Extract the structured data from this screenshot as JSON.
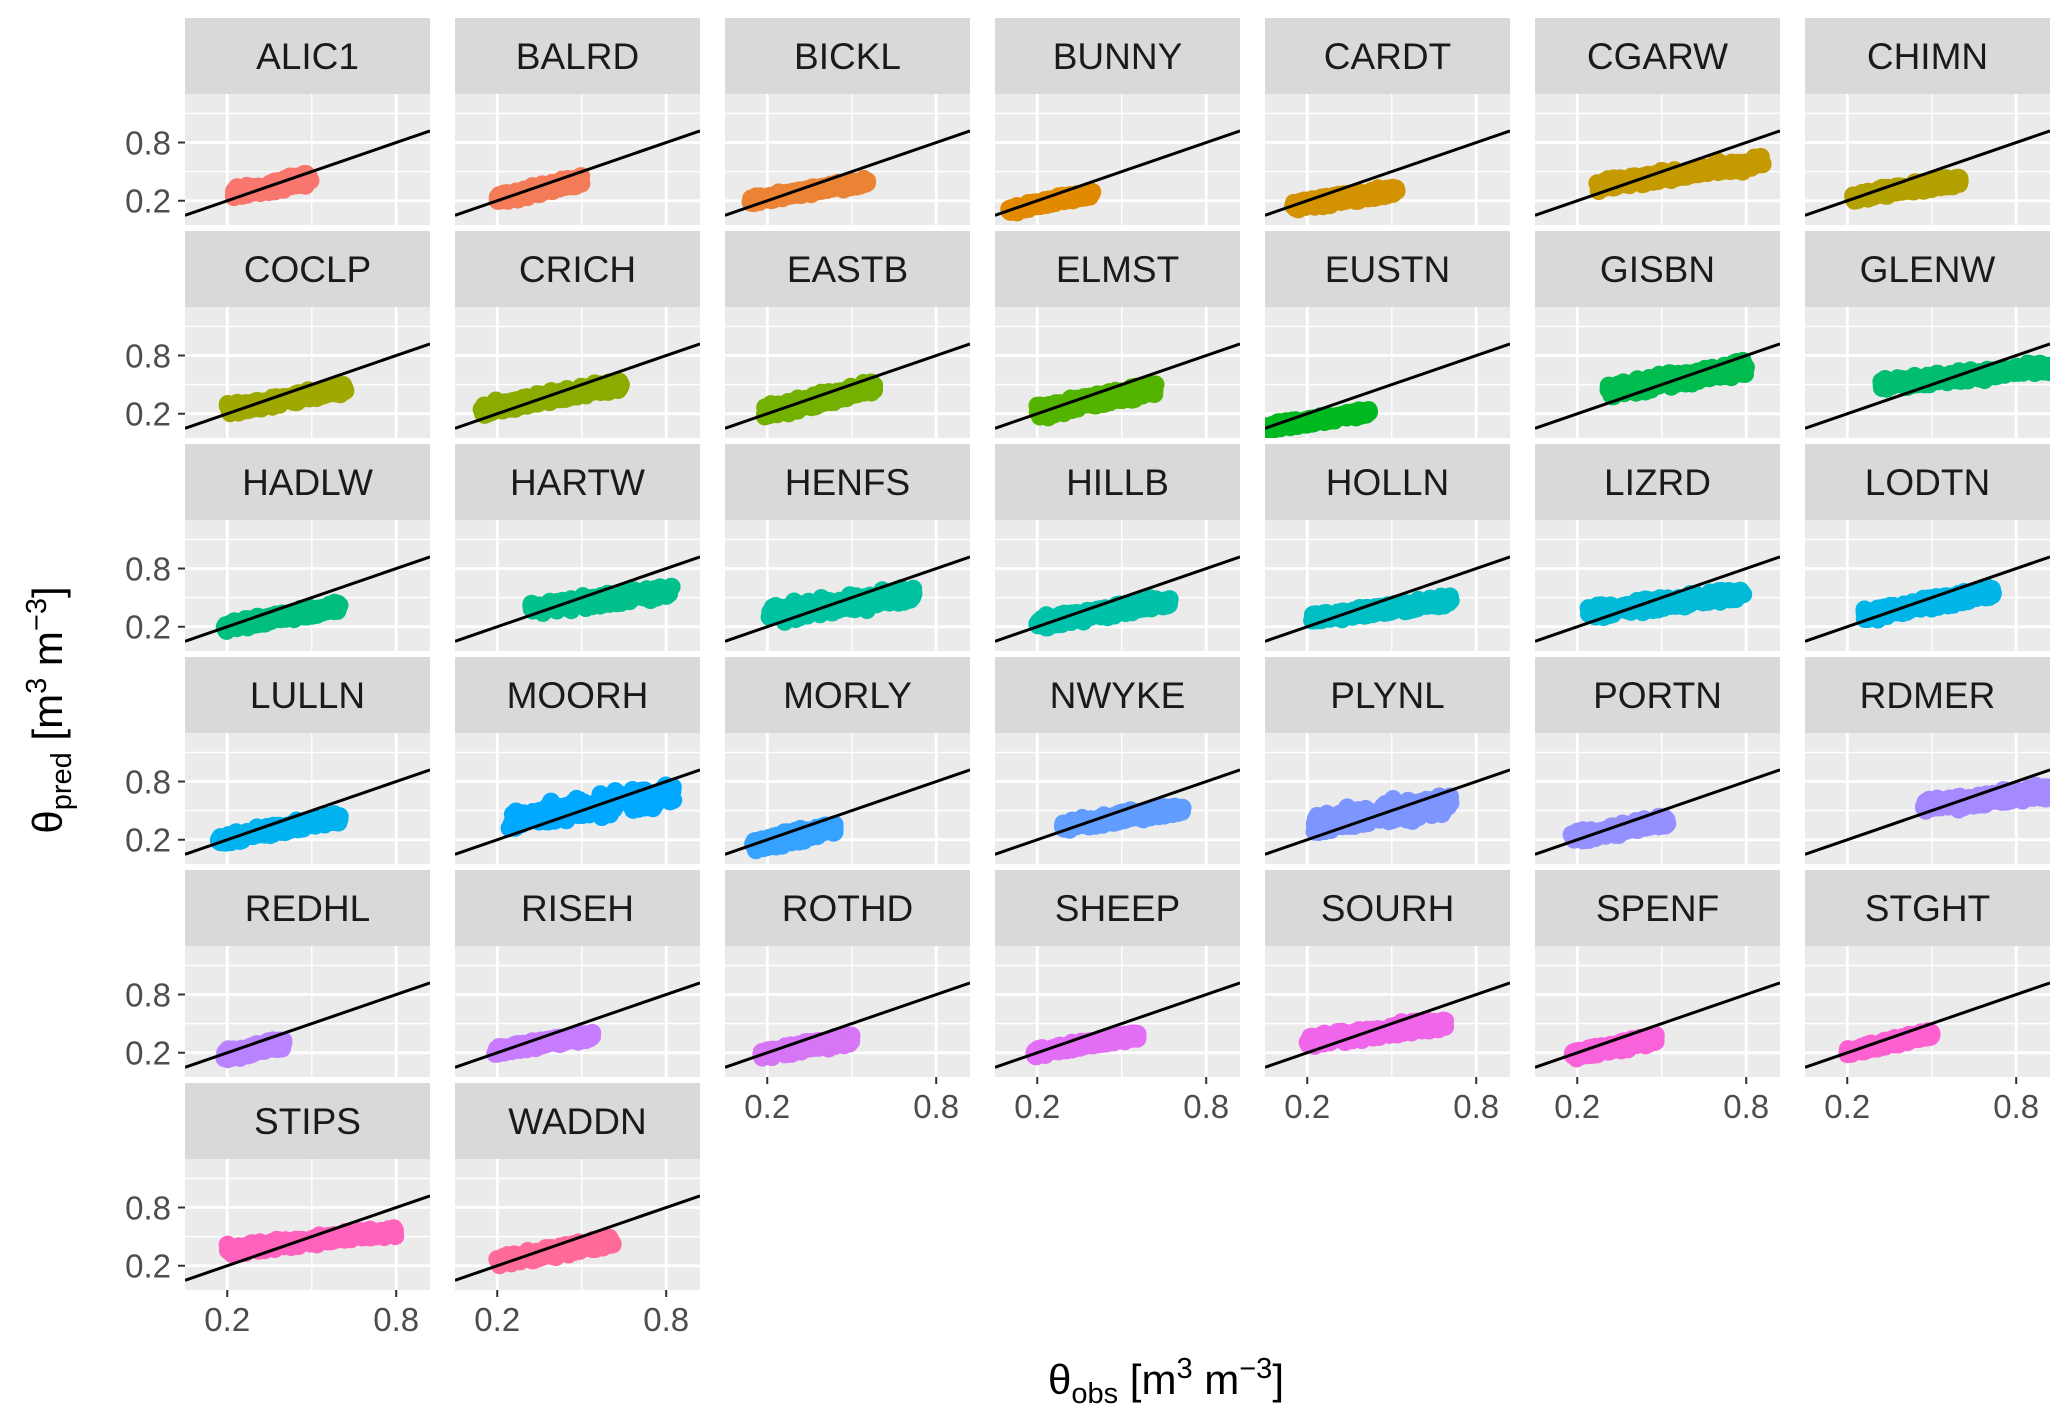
{
  "chart_data": {
    "type": "scatter",
    "facet_layout": {
      "ncol": 7,
      "nrow": 6,
      "free": false
    },
    "xlabel": {
      "symbol": "θ",
      "subscript": "obs",
      "unit_prefix": " [m",
      "sup1": "3",
      "unit_mid": " m",
      "sup2": "−3",
      "unit_suffix": "]"
    },
    "ylabel": {
      "symbol": "θ",
      "subscript": "pred",
      "unit_prefix": " [m",
      "sup1": "3",
      "unit_mid": " m",
      "sup2": "−3",
      "unit_suffix": "]"
    },
    "xlim": [
      0.05,
      0.92
    ],
    "ylim": [
      -0.05,
      1.3
    ],
    "x_ticks": [
      "0.2",
      "0.8"
    ],
    "y_ticks": [
      "0.8",
      "0.2"
    ],
    "x_tick_values": [
      0.2,
      0.8
    ],
    "y_tick_values": [
      0.8,
      0.2
    ],
    "reference_line": {
      "type": "1:1",
      "color": "#000000"
    },
    "grid": true,
    "legend": "none",
    "panels": [
      {
        "site": "ALIC1",
        "color": "#F8766D",
        "x_range": [
          0.22,
          0.5
        ],
        "y_range": [
          0.2,
          0.5
        ],
        "y_at_x_min": 0.27,
        "y_at_x_max": 0.43
      },
      {
        "site": "BALRD",
        "color": "#F47B58",
        "x_range": [
          0.2,
          0.5
        ],
        "y_range": [
          0.17,
          0.48
        ],
        "y_at_x_min": 0.22,
        "y_at_x_max": 0.41
      },
      {
        "site": "BICKL",
        "color": "#EB8335",
        "x_range": [
          0.14,
          0.56
        ],
        "y_range": [
          0.16,
          0.45
        ],
        "y_at_x_min": 0.2,
        "y_at_x_max": 0.4
      },
      {
        "site": "BUNNY",
        "color": "#E18A00",
        "x_range": [
          0.1,
          0.4
        ],
        "y_range": [
          0.06,
          0.33
        ],
        "y_at_x_min": 0.1,
        "y_at_x_max": 0.28
      },
      {
        "site": "CARDT",
        "color": "#D39200",
        "x_range": [
          0.15,
          0.52
        ],
        "y_range": [
          0.09,
          0.38
        ],
        "y_at_x_min": 0.15,
        "y_at_x_max": 0.31
      },
      {
        "site": "CGARW",
        "color": "#C49A00",
        "x_range": [
          0.27,
          0.86
        ],
        "y_range": [
          0.28,
          0.68
        ],
        "y_at_x_min": 0.36,
        "y_at_x_max": 0.6
      },
      {
        "site": "CHIMN",
        "color": "#B2A100",
        "x_range": [
          0.22,
          0.6
        ],
        "y_range": [
          0.18,
          0.48
        ],
        "y_at_x_min": 0.24,
        "y_at_x_max": 0.41
      },
      {
        "site": "COCLP",
        "color": "#9FA800",
        "x_range": [
          0.2,
          0.62
        ],
        "y_range": [
          0.18,
          0.55
        ],
        "y_at_x_min": 0.24,
        "y_at_x_max": 0.46
      },
      {
        "site": "CRICH",
        "color": "#8AAB00",
        "x_range": [
          0.14,
          0.64
        ],
        "y_range": [
          0.17,
          0.58
        ],
        "y_at_x_min": 0.24,
        "y_at_x_max": 0.5
      },
      {
        "site": "EASTB",
        "color": "#73B000",
        "x_range": [
          0.19,
          0.58
        ],
        "y_range": [
          0.14,
          0.56
        ],
        "y_at_x_min": 0.22,
        "y_at_x_max": 0.47
      },
      {
        "site": "ELMST",
        "color": "#53B400",
        "x_range": [
          0.2,
          0.62
        ],
        "y_range": [
          0.14,
          0.55
        ],
        "y_at_x_min": 0.22,
        "y_at_x_max": 0.46
      },
      {
        "site": "EUSTN",
        "color": "#00B81F",
        "x_range": [
          0.05,
          0.42
        ],
        "y_range": [
          0.03,
          0.3
        ],
        "y_at_x_min": 0.05,
        "y_at_x_max": 0.22
      },
      {
        "site": "GISBN",
        "color": "#00BB4E",
        "x_range": [
          0.31,
          0.8
        ],
        "y_range": [
          0.38,
          0.82
        ],
        "y_at_x_min": 0.43,
        "y_at_x_max": 0.68
      },
      {
        "site": "GLENW",
        "color": "#00BD70",
        "x_range": [
          0.32,
          0.92
        ],
        "y_range": [
          0.42,
          0.75
        ],
        "y_at_x_min": 0.5,
        "y_at_x_max": 0.68
      },
      {
        "site": "HADLW",
        "color": "#00BF7D",
        "x_range": [
          0.19,
          0.6
        ],
        "y_range": [
          0.14,
          0.47
        ],
        "y_at_x_min": 0.2,
        "y_at_x_max": 0.41
      },
      {
        "site": "HARTW",
        "color": "#00C08B",
        "x_range": [
          0.32,
          0.82
        ],
        "y_range": [
          0.3,
          0.64
        ],
        "y_at_x_min": 0.38,
        "y_at_x_max": 0.57
      },
      {
        "site": "HENFS",
        "color": "#00C1A0",
        "x_range": [
          0.2,
          0.72
        ],
        "y_range": [
          0.24,
          0.68
        ],
        "y_at_x_min": 0.32,
        "y_at_x_max": 0.54
      },
      {
        "site": "HILLB",
        "color": "#00C1AA",
        "x_range": [
          0.2,
          0.67
        ],
        "y_range": [
          0.18,
          0.55
        ],
        "y_at_x_min": 0.24,
        "y_at_x_max": 0.46
      },
      {
        "site": "HOLLN",
        "color": "#00BFC4",
        "x_range": [
          0.21,
          0.71
        ],
        "y_range": [
          0.22,
          0.54
        ],
        "y_at_x_min": 0.28,
        "y_at_x_max": 0.47
      },
      {
        "site": "LIZRD",
        "color": "#00BAD8",
        "x_range": [
          0.24,
          0.79
        ],
        "y_range": [
          0.26,
          0.65
        ],
        "y_at_x_min": 0.34,
        "y_at_x_max": 0.55
      },
      {
        "site": "LODTN",
        "color": "#00B5E8",
        "x_range": [
          0.26,
          0.72
        ],
        "y_range": [
          0.24,
          0.64
        ],
        "y_at_x_min": 0.32,
        "y_at_x_max": 0.56
      },
      {
        "site": "LULLN",
        "color": "#00B2EE",
        "x_range": [
          0.17,
          0.6
        ],
        "y_range": [
          0.14,
          0.5
        ],
        "y_at_x_min": 0.2,
        "y_at_x_max": 0.43
      },
      {
        "site": "MOORH",
        "color": "#00A9FF",
        "x_range": [
          0.24,
          0.83
        ],
        "y_range": [
          0.32,
          0.88
        ],
        "y_at_x_min": 0.4,
        "y_at_x_max": 0.68
      },
      {
        "site": "MORLY",
        "color": "#35A2FF",
        "x_range": [
          0.15,
          0.44
        ],
        "y_range": [
          0.08,
          0.42
        ],
        "y_at_x_min": 0.14,
        "y_at_x_max": 0.32
      },
      {
        "site": "NWYKE",
        "color": "#619CFF",
        "x_range": [
          0.29,
          0.72
        ],
        "y_range": [
          0.28,
          0.6
        ],
        "y_at_x_min": 0.34,
        "y_at_x_max": 0.52
      },
      {
        "site": "PLYNL",
        "color": "#7D96FF",
        "x_range": [
          0.22,
          0.71
        ],
        "y_range": [
          0.28,
          0.78
        ],
        "y_at_x_min": 0.36,
        "y_at_x_max": 0.58
      },
      {
        "site": "PORTN",
        "color": "#9590FF",
        "x_range": [
          0.18,
          0.52
        ],
        "y_range": [
          0.16,
          0.48
        ],
        "y_at_x_min": 0.22,
        "y_at_x_max": 0.4
      },
      {
        "site": "RDMER",
        "color": "#A58AFF",
        "x_range": [
          0.47,
          0.92
        ],
        "y_range": [
          0.46,
          0.8
        ],
        "y_at_x_min": 0.54,
        "y_at_x_max": 0.7
      },
      {
        "site": "REDHL",
        "color": "#B983FF",
        "x_range": [
          0.19,
          0.4
        ],
        "y_range": [
          0.12,
          0.38
        ],
        "y_at_x_min": 0.17,
        "y_at_x_max": 0.3
      },
      {
        "site": "RISEH",
        "color": "#C77CFF",
        "x_range": [
          0.19,
          0.54
        ],
        "y_range": [
          0.18,
          0.44
        ],
        "y_at_x_min": 0.22,
        "y_at_x_max": 0.38
      },
      {
        "site": "ROTHD",
        "color": "#D675F5",
        "x_range": [
          0.17,
          0.5
        ],
        "y_range": [
          0.14,
          0.42
        ],
        "y_at_x_min": 0.18,
        "y_at_x_max": 0.34
      },
      {
        "site": "SHEEP",
        "color": "#E36EF6",
        "x_range": [
          0.19,
          0.56
        ],
        "y_range": [
          0.16,
          0.44
        ],
        "y_at_x_min": 0.2,
        "y_at_x_max": 0.38
      },
      {
        "site": "SOURH",
        "color": "#F066EA",
        "x_range": [
          0.2,
          0.69
        ],
        "y_range": [
          0.26,
          0.6
        ],
        "y_at_x_min": 0.32,
        "y_at_x_max": 0.5
      },
      {
        "site": "SPENF",
        "color": "#FA62DB",
        "x_range": [
          0.18,
          0.48
        ],
        "y_range": [
          0.14,
          0.42
        ],
        "y_at_x_min": 0.18,
        "y_at_x_max": 0.34
      },
      {
        "site": "STGHT",
        "color": "#FD61D1",
        "x_range": [
          0.2,
          0.5
        ],
        "y_range": [
          0.16,
          0.46
        ],
        "y_at_x_min": 0.2,
        "y_at_x_max": 0.4
      },
      {
        "site": "STIPS",
        "color": "#FF62BC",
        "x_range": [
          0.2,
          0.8
        ],
        "y_range": [
          0.3,
          0.63
        ],
        "y_at_x_min": 0.36,
        "y_at_x_max": 0.56
      },
      {
        "site": "WADDN",
        "color": "#FF6A98",
        "x_range": [
          0.2,
          0.61
        ],
        "y_range": [
          0.18,
          0.52
        ],
        "y_at_x_min": 0.24,
        "y_at_x_max": 0.45
      }
    ]
  }
}
